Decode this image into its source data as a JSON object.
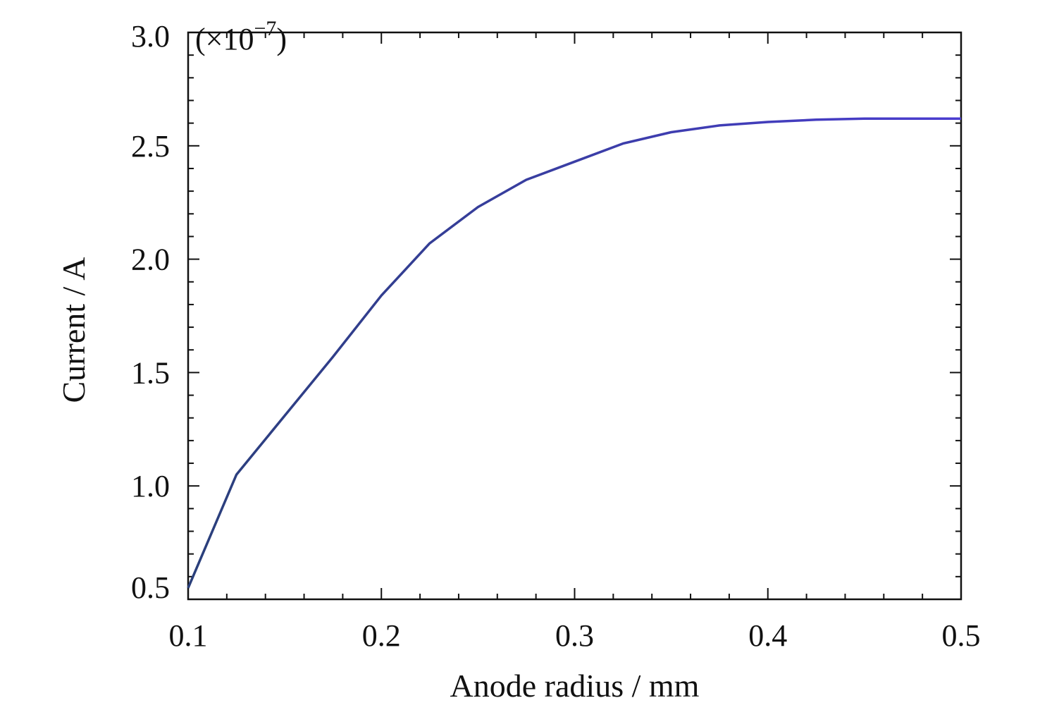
{
  "chart_data": {
    "type": "line",
    "xlabel": "Anode radius / mm",
    "ylabel": "Current / A",
    "scale_factor_label": "(×10",
    "scale_exponent": "−7",
    "scale_close": ")",
    "xlim": [
      0.1,
      0.5
    ],
    "ylim": [
      0.5,
      3.0
    ],
    "x_ticks": [
      "0.1",
      "0.2",
      "0.3",
      "0.4",
      "0.5"
    ],
    "y_ticks": [
      "0.5",
      "1.0",
      "1.5",
      "2.0",
      "2.5",
      "3.0"
    ],
    "x_minor_step": 0.02,
    "y_minor_step": 0.1,
    "grid": false,
    "line_color_start": "#2a3f7a",
    "line_color_end": "#4a3cd0",
    "series": [
      {
        "x": [
          0.1,
          0.125,
          0.15,
          0.175,
          0.2,
          0.225,
          0.25,
          0.275,
          0.3,
          0.325,
          0.35,
          0.375,
          0.4,
          0.425,
          0.45,
          0.475,
          0.5
        ],
        "y": [
          0.55,
          1.05,
          1.31,
          1.57,
          1.84,
          2.07,
          2.23,
          2.35,
          2.43,
          2.51,
          2.56,
          2.59,
          2.605,
          2.615,
          2.62,
          2.62,
          2.62
        ]
      }
    ]
  }
}
